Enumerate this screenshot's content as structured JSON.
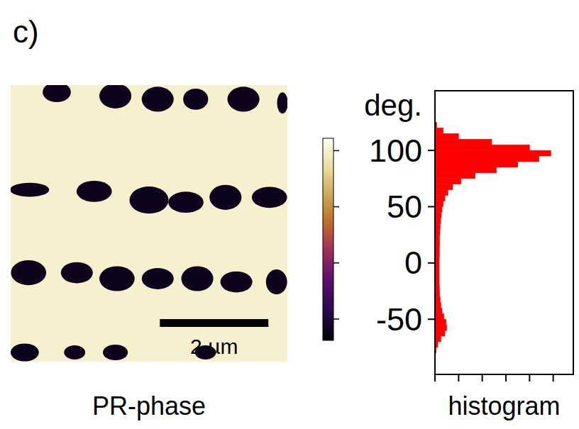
{
  "panel_label": "c)",
  "chart_data": [
    {
      "type": "image",
      "title": "PR-phase",
      "xlim": [
        0,
        5.1
      ],
      "ylim": [
        0,
        5.1
      ],
      "tick_labels": false,
      "background_phase": 100,
      "domains": [
        {
          "cx": 0.85,
          "cy": 0.13,
          "w": 0.52,
          "h": 0.37,
          "phase": -60
        },
        {
          "cx": 1.93,
          "cy": 0.2,
          "w": 0.59,
          "h": 0.46,
          "phase": -60
        },
        {
          "cx": 2.71,
          "cy": 0.26,
          "w": 0.59,
          "h": 0.46,
          "phase": -60
        },
        {
          "cx": 3.41,
          "cy": 0.26,
          "w": 0.46,
          "h": 0.39,
          "phase": -60
        },
        {
          "cx": 4.29,
          "cy": 0.26,
          "w": 0.59,
          "h": 0.46,
          "phase": -60
        },
        {
          "cx": 5.01,
          "cy": 0.33,
          "w": 0.2,
          "h": 0.39,
          "phase": -60
        },
        {
          "cx": 0.35,
          "cy": 1.93,
          "w": 0.72,
          "h": 0.26,
          "phase": -60
        },
        {
          "cx": 1.54,
          "cy": 1.96,
          "w": 0.65,
          "h": 0.39,
          "phase": -60
        },
        {
          "cx": 2.55,
          "cy": 2.12,
          "w": 0.72,
          "h": 0.5,
          "phase": -60
        },
        {
          "cx": 3.23,
          "cy": 2.16,
          "w": 0.65,
          "h": 0.39,
          "phase": -60
        },
        {
          "cx": 3.96,
          "cy": 2.07,
          "w": 0.59,
          "h": 0.46,
          "phase": -60
        },
        {
          "cx": 4.77,
          "cy": 2.07,
          "w": 0.65,
          "h": 0.39,
          "phase": -60
        },
        {
          "cx": 0.33,
          "cy": 3.46,
          "w": 0.65,
          "h": 0.46,
          "phase": -60
        },
        {
          "cx": 1.22,
          "cy": 3.46,
          "w": 0.59,
          "h": 0.39,
          "phase": -60
        },
        {
          "cx": 1.96,
          "cy": 3.57,
          "w": 0.65,
          "h": 0.46,
          "phase": -60
        },
        {
          "cx": 2.71,
          "cy": 3.57,
          "w": 0.59,
          "h": 0.39,
          "phase": -60
        },
        {
          "cx": 3.44,
          "cy": 3.57,
          "w": 0.59,
          "h": 0.46,
          "phase": -60
        },
        {
          "cx": 4.16,
          "cy": 3.63,
          "w": 0.59,
          "h": 0.39,
          "phase": -60
        },
        {
          "cx": 4.9,
          "cy": 3.63,
          "w": 0.39,
          "h": 0.46,
          "phase": -60
        },
        {
          "cx": 0.26,
          "cy": 4.93,
          "w": 0.52,
          "h": 0.33,
          "phase": -60
        },
        {
          "cx": 1.18,
          "cy": 4.93,
          "w": 0.39,
          "h": 0.26,
          "phase": -60
        },
        {
          "cx": 1.93,
          "cy": 4.93,
          "w": 0.46,
          "h": 0.29,
          "phase": -60
        },
        {
          "cx": 3.59,
          "cy": 4.93,
          "w": 0.39,
          "h": 0.26,
          "phase": -60
        }
      ],
      "colorbar": {
        "range": [
          -69,
          111
        ],
        "ticks": [
          -50,
          0,
          50,
          100
        ]
      },
      "scale_bar": {
        "length": 2,
        "label": "2 µm"
      }
    },
    {
      "type": "histogram",
      "title": "histogram",
      "orientation": "horizontal",
      "ylabel": "deg.",
      "color": "#ff0000",
      "bins": [
        -80,
        -75,
        -70,
        -65,
        -60,
        -55,
        -50,
        -45,
        -40,
        -35,
        -30,
        -25,
        -20,
        -15,
        -10,
        -5,
        0,
        5,
        10,
        15,
        20,
        25,
        30,
        35,
        40,
        45,
        50,
        55,
        60,
        65,
        70,
        75,
        80,
        85,
        90,
        95,
        100,
        105,
        110,
        115,
        120,
        125
      ],
      "counts": [
        0.05,
        0.12,
        0.25,
        0.42,
        0.5,
        0.47,
        0.38,
        0.3,
        0.25,
        0.22,
        0.2,
        0.19,
        0.18,
        0.18,
        0.18,
        0.18,
        0.18,
        0.19,
        0.19,
        0.2,
        0.2,
        0.21,
        0.22,
        0.24,
        0.27,
        0.3,
        0.35,
        0.42,
        0.55,
        0.75,
        1.1,
        1.7,
        2.6,
        3.5,
        4.4,
        4.9,
        4.0,
        2.4,
        1.0,
        0.35,
        0.08
      ],
      "ylim": [
        -99,
        153
      ],
      "yticks": [
        -50,
        0,
        50,
        100
      ],
      "xlim": [
        0,
        5.85
      ],
      "xticks": [
        0,
        1,
        2,
        3,
        4,
        5
      ],
      "tick_labels": "y"
    }
  ]
}
